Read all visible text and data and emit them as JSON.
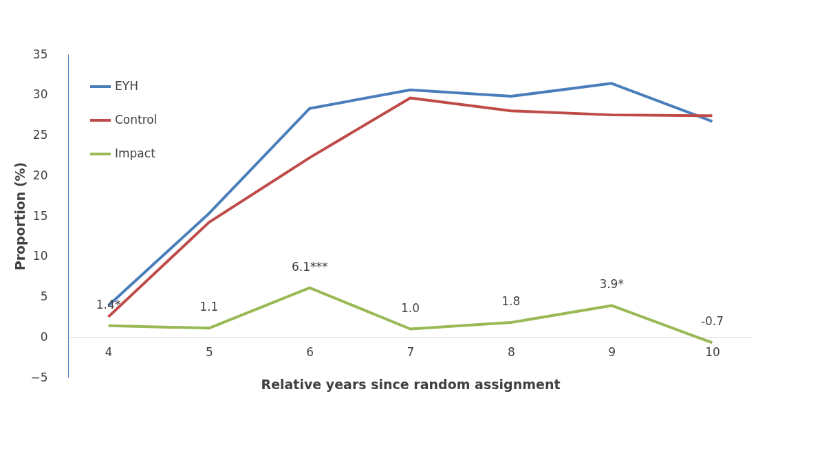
{
  "chart_data": {
    "type": "line",
    "xlabel": "Relative years since random assignment",
    "ylabel": "Proportion (%)",
    "categories": [
      "4",
      "5",
      "6",
      "7",
      "8",
      "9",
      "10"
    ],
    "series": [
      {
        "name": "EYH",
        "color": "#4a7ebb",
        "values": [
          3.9,
          15.3,
          28.3,
          30.6,
          29.8,
          31.4,
          26.7
        ]
      },
      {
        "name": "Control",
        "color": "#be4b48",
        "values": [
          2.5,
          14.2,
          22.2,
          29.6,
          28.0,
          27.5,
          27.4
        ]
      },
      {
        "name": "Impact",
        "color": "#98b954",
        "values": [
          1.4,
          1.1,
          6.1,
          1.0,
          1.8,
          3.9,
          -0.7
        ],
        "value_labels": [
          "1.4*",
          "1.1",
          "6.1***",
          "1.0",
          "1.8",
          "3.9*",
          "-0.7"
        ]
      }
    ],
    "ylim": [
      -5,
      35
    ],
    "yticks": [
      -5,
      0,
      5,
      10,
      15,
      20,
      25,
      30,
      35
    ],
    "grid": false,
    "legend": "top left",
    "marker": "none",
    "line_style": "solid"
  }
}
